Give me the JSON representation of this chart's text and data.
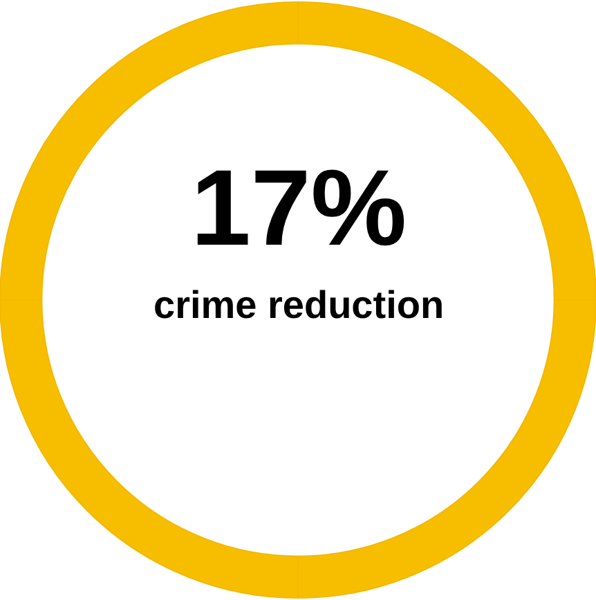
{
  "chart_data": {
    "type": "donut",
    "categories": [
      null,
      null,
      null,
      null
    ],
    "values": [
      25,
      25,
      25,
      25
    ],
    "colors": [
      "#f7be00",
      "#f7be00",
      "#f7be00",
      "#f7be00"
    ],
    "annotations": [
      "17%",
      "crime reduction"
    ]
  }
}
